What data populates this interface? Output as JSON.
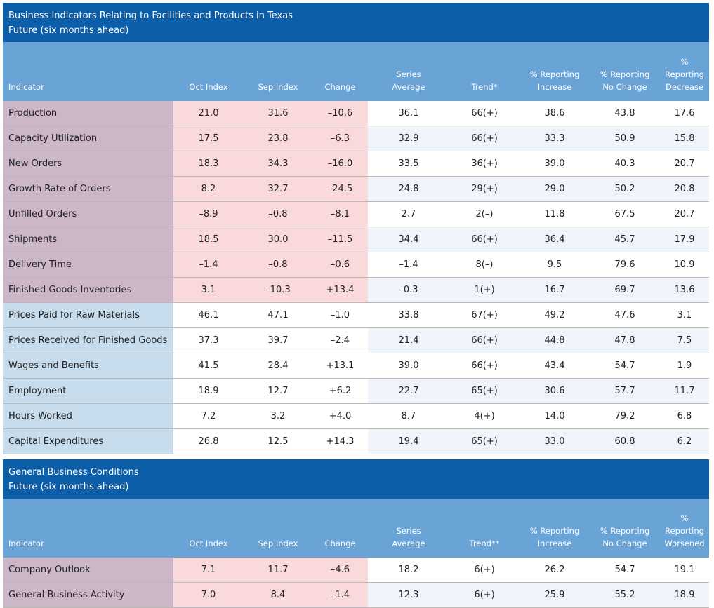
{
  "tables": [
    {
      "title": "Business Indicators Relating to Facilities and Products in Texas",
      "subtitle": "Future (six months ahead)",
      "headers": [
        [
          "Indicator"
        ],
        [
          "Oct Index"
        ],
        [
          "Sep Index"
        ],
        [
          "Change"
        ],
        [
          "Series",
          "Average"
        ],
        [
          "Trend*"
        ],
        [
          "% Reporting",
          "Increase"
        ],
        [
          "% Reporting",
          "No Change"
        ],
        [
          "%",
          "Reporting",
          "Decrease"
        ]
      ],
      "rows": [
        [
          "Production",
          "21.0",
          "31.6",
          "–10.6",
          "36.1",
          "66(+)",
          "38.6",
          "43.8",
          "17.6"
        ],
        [
          "Capacity Utilization",
          "17.5",
          "23.8",
          "–6.3",
          "32.9",
          "66(+)",
          "33.3",
          "50.9",
          "15.8"
        ],
        [
          "New Orders",
          "18.3",
          "34.3",
          "–16.0",
          "33.5",
          "36(+)",
          "39.0",
          "40.3",
          "20.7"
        ],
        [
          "Growth Rate of Orders",
          "8.2",
          "32.7",
          "–24.5",
          "24.8",
          "29(+)",
          "29.0",
          "50.2",
          "20.8"
        ],
        [
          "Unfilled Orders",
          "–8.9",
          "–0.8",
          "–8.1",
          "2.7",
          "2(–)",
          "11.8",
          "67.5",
          "20.7"
        ],
        [
          "Shipments",
          "18.5",
          "30.0",
          "–11.5",
          "34.4",
          "66(+)",
          "36.4",
          "45.7",
          "17.9"
        ],
        [
          "Delivery Time",
          "–1.4",
          "–0.8",
          "–0.6",
          "–1.4",
          "8(–)",
          "9.5",
          "79.6",
          "10.9"
        ],
        [
          "Finished Goods Inventories",
          "3.1",
          "–10.3",
          "+13.4",
          "–0.3",
          "1(+)",
          "16.7",
          "69.7",
          "13.6"
        ],
        [
          "Prices Paid for Raw Materials",
          "46.1",
          "47.1",
          "–1.0",
          "33.8",
          "67(+)",
          "49.2",
          "47.6",
          "3.1"
        ],
        [
          "Prices Received for Finished Goods",
          "37.3",
          "39.7",
          "–2.4",
          "21.4",
          "66(+)",
          "44.8",
          "47.8",
          "7.5"
        ],
        [
          "Wages and Benefits",
          "41.5",
          "28.4",
          "+13.1",
          "39.0",
          "66(+)",
          "43.4",
          "54.7",
          "1.9"
        ],
        [
          "Employment",
          "18.9",
          "12.7",
          "+6.2",
          "22.7",
          "65(+)",
          "30.6",
          "57.7",
          "11.7"
        ],
        [
          "Hours Worked",
          "7.2",
          "3.2",
          "+4.0",
          "8.7",
          "4(+)",
          "14.0",
          "79.2",
          "6.8"
        ],
        [
          "Capital Expenditures",
          "26.8",
          "12.5",
          "+14.3",
          "19.4",
          "65(+)",
          "33.0",
          "60.8",
          "6.2"
        ]
      ]
    },
    {
      "title": "General Business Conditions",
      "subtitle": "Future (six months ahead)",
      "headers": [
        [
          "Indicator"
        ],
        [
          "Oct Index"
        ],
        [
          "Sep Index"
        ],
        [
          "Change"
        ],
        [
          "Series",
          "Average"
        ],
        [
          "Trend**"
        ],
        [
          "% Reporting",
          "Increase"
        ],
        [
          "% Reporting",
          "No Change"
        ],
        [
          "%",
          "Reporting",
          "Worsened"
        ]
      ],
      "rows": [
        [
          "Company Outlook",
          "7.1",
          "11.7",
          "–4.6",
          "18.2",
          "6(+)",
          "26.2",
          "54.7",
          "19.1"
        ],
        [
          "General Business Activity",
          "7.0",
          "8.4",
          "–1.4",
          "12.3",
          "6(+)",
          "25.9",
          "55.2",
          "18.9"
        ]
      ]
    }
  ]
}
